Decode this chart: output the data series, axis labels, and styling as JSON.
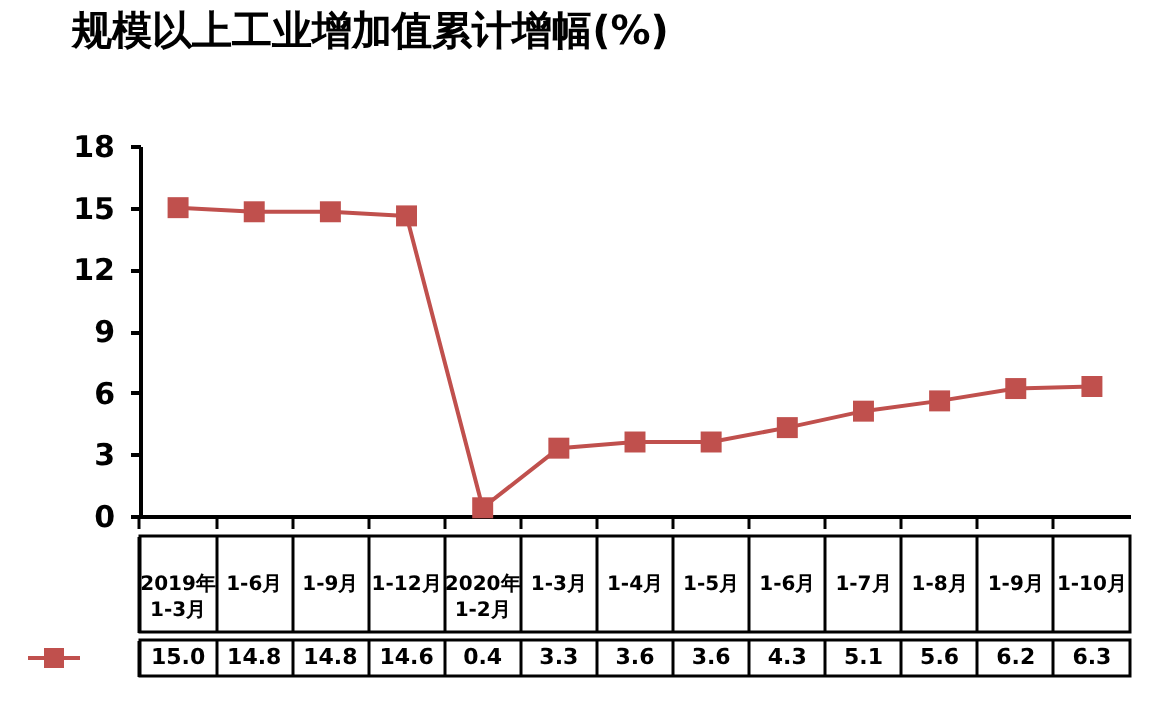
{
  "chart_data": {
    "type": "line",
    "title": "规模以上工业增加值累计增幅(%)",
    "categories": [
      "2019年1-3月",
      "1-6月",
      "1-9月",
      "1-12月",
      "2020年1-2月",
      "1-3月",
      "1-4月",
      "1-5月",
      "1-6月",
      "1-7月",
      "1-8月",
      "1-9月",
      "1-10月"
    ],
    "series": [
      {
        "color": "#c0504d",
        "values": [
          15.0,
          14.8,
          14.8,
          14.6,
          0.4,
          3.3,
          3.6,
          3.6,
          4.3,
          5.1,
          5.6,
          6.2,
          6.3
        ],
        "value_labels": [
          "15.0",
          "14.8",
          "14.8",
          "14.6",
          "0.4",
          "3.3",
          "3.6",
          "3.6",
          "4.3",
          "5.1",
          "5.6",
          "6.2",
          "6.3"
        ]
      }
    ],
    "ylim": [
      0,
      18
    ],
    "yticks": [
      0,
      3,
      6,
      9,
      12,
      15,
      18
    ],
    "grid": false,
    "marker": "square",
    "line_style": "solid"
  }
}
